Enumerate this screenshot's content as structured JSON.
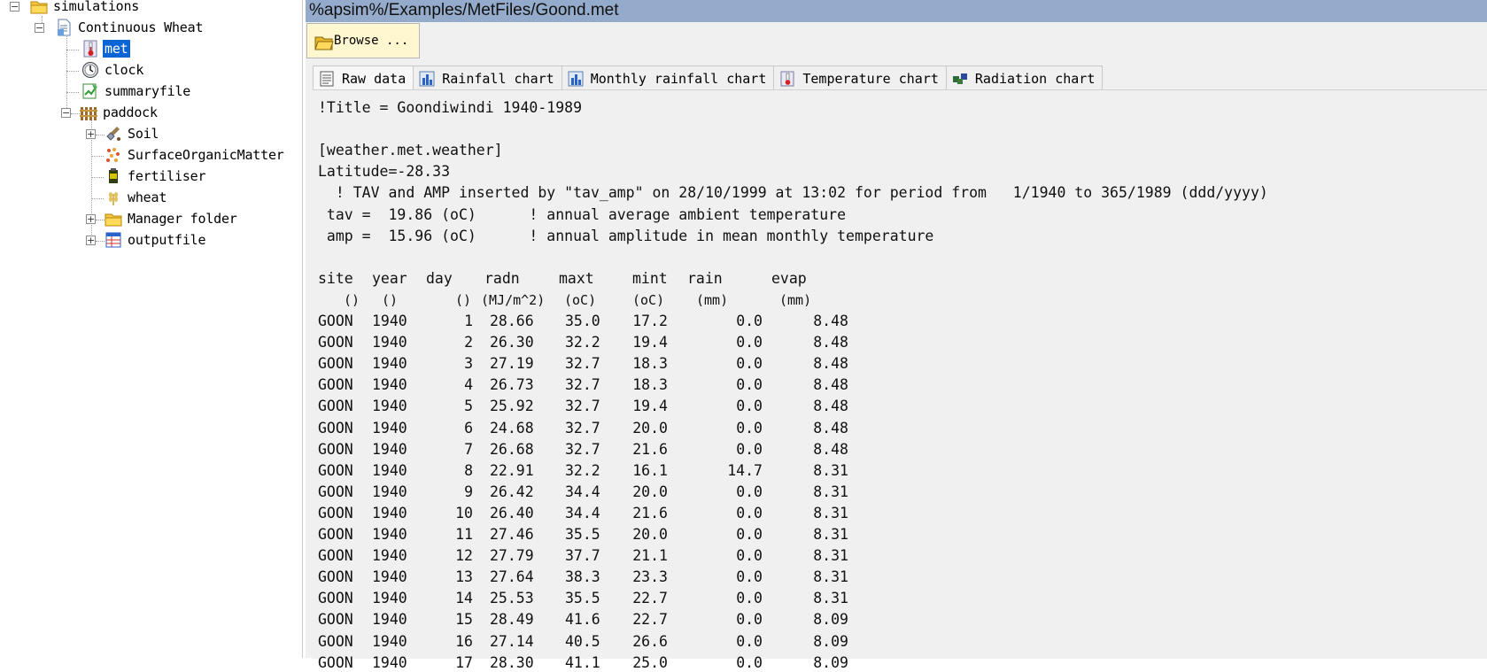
{
  "tree": {
    "items": [
      {
        "label": "simulations",
        "icon": "folder-icon"
      },
      {
        "label": "Continuous Wheat",
        "icon": "simulation-document-icon"
      },
      {
        "label": "met",
        "icon": "thermometer-icon",
        "selected": true
      },
      {
        "label": "clock",
        "icon": "clock-icon"
      },
      {
        "label": "summaryfile",
        "icon": "summary-file-icon"
      },
      {
        "label": "paddock",
        "icon": "paddock-icon"
      },
      {
        "label": "Soil",
        "icon": "soil-shovel-icon"
      },
      {
        "label": "SurfaceOrganicMatter",
        "icon": "organic-matter-icon"
      },
      {
        "label": "fertiliser",
        "icon": "fertiliser-icon"
      },
      {
        "label": "wheat",
        "icon": "wheat-icon"
      },
      {
        "label": "Manager folder",
        "icon": "folder-icon"
      },
      {
        "label": "outputfile",
        "icon": "output-file-icon"
      }
    ]
  },
  "path": "%apsim%/Examples/MetFiles/Goond.met",
  "browse_label": "Browse ...",
  "tabs": [
    {
      "label": "Raw data",
      "icon": "raw-data-icon",
      "active": true
    },
    {
      "label": "Rainfall chart",
      "icon": "chart-icon"
    },
    {
      "label": "Monthly rainfall chart",
      "icon": "chart-icon"
    },
    {
      "label": "Temperature chart",
      "icon": "thermometer-icon"
    },
    {
      "label": "Radiation chart",
      "icon": "radiation-icon"
    }
  ],
  "raw": {
    "header_lines": [
      "!Title = Goondiwindi 1940-1989",
      "",
      "[weather.met.weather]",
      "Latitude=-28.33",
      "  ! TAV and AMP inserted by \"tav_amp\" on 28/10/1999 at 13:02 for period from   1/1940 to 365/1989 (ddd/yyyy)",
      " tav =  19.86 (oC)      ! annual average ambient temperature",
      " amp =  15.96 (oC)      ! annual amplitude in mean monthly temperature"
    ],
    "columns": [
      "site",
      "year",
      "day",
      "radn",
      "maxt",
      "mint",
      "rain",
      "evap"
    ],
    "units": [
      "()",
      "()",
      "()",
      "(MJ/m^2)",
      "(oC)",
      "(oC)",
      "(mm)",
      "(mm)"
    ],
    "rows": [
      [
        "GOON",
        "1940",
        "1",
        "28.66",
        "35.0",
        "17.2",
        "0.0",
        "8.48"
      ],
      [
        "GOON",
        "1940",
        "2",
        "26.30",
        "32.2",
        "19.4",
        "0.0",
        "8.48"
      ],
      [
        "GOON",
        "1940",
        "3",
        "27.19",
        "32.7",
        "18.3",
        "0.0",
        "8.48"
      ],
      [
        "GOON",
        "1940",
        "4",
        "26.73",
        "32.7",
        "18.3",
        "0.0",
        "8.48"
      ],
      [
        "GOON",
        "1940",
        "5",
        "25.92",
        "32.7",
        "19.4",
        "0.0",
        "8.48"
      ],
      [
        "GOON",
        "1940",
        "6",
        "24.68",
        "32.7",
        "20.0",
        "0.0",
        "8.48"
      ],
      [
        "GOON",
        "1940",
        "7",
        "26.68",
        "32.7",
        "21.6",
        "0.0",
        "8.48"
      ],
      [
        "GOON",
        "1940",
        "8",
        "22.91",
        "32.2",
        "16.1",
        "14.7",
        "8.31"
      ],
      [
        "GOON",
        "1940",
        "9",
        "26.42",
        "34.4",
        "20.0",
        "0.0",
        "8.31"
      ],
      [
        "GOON",
        "1940",
        "10",
        "26.40",
        "34.4",
        "21.6",
        "0.0",
        "8.31"
      ],
      [
        "GOON",
        "1940",
        "11",
        "27.46",
        "35.5",
        "20.0",
        "0.0",
        "8.31"
      ],
      [
        "GOON",
        "1940",
        "12",
        "27.79",
        "37.7",
        "21.1",
        "0.0",
        "8.31"
      ],
      [
        "GOON",
        "1940",
        "13",
        "27.64",
        "38.3",
        "23.3",
        "0.0",
        "8.31"
      ],
      [
        "GOON",
        "1940",
        "14",
        "25.53",
        "35.5",
        "22.7",
        "0.0",
        "8.31"
      ],
      [
        "GOON",
        "1940",
        "15",
        "28.49",
        "41.6",
        "22.7",
        "0.0",
        "8.09"
      ],
      [
        "GOON",
        "1940",
        "16",
        "27.14",
        "40.5",
        "26.6",
        "0.0",
        "8.09"
      ],
      [
        "GOON",
        "1940",
        "17",
        "28.30",
        "41.1",
        "25.0",
        "0.0",
        "8.09"
      ]
    ]
  },
  "colors": {
    "path_bar": "#94abcb",
    "selection": "#0a64d6",
    "browse_bg": "#fff7cf"
  }
}
